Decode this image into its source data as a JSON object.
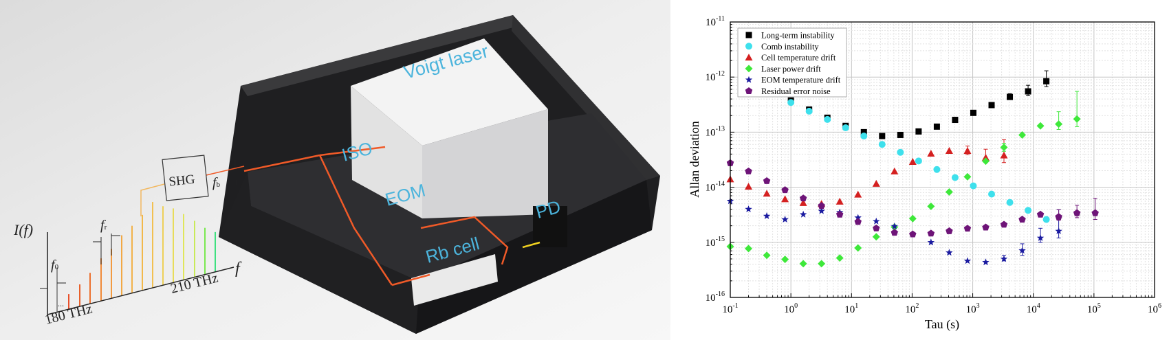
{
  "illustration": {
    "labels": {
      "laser": "Voigt laser",
      "iso": "ISO",
      "eom": "EOM",
      "pd": "PD",
      "rb_cell": "Rb cell",
      "shg": "SHG",
      "fb": "f",
      "fb_sub": "b",
      "fr": "f",
      "fr_sub": "r",
      "f0": "f",
      "f0_sub": "0",
      "intensity": "I(f)",
      "freq_axis": "f",
      "start_freq": "180 THz",
      "end_freq": "210 THz",
      "ellipsis": "..."
    },
    "colors": {
      "beam": "#f05a28",
      "label": "#4cb4dc",
      "enclosure": "#2a2a2c"
    }
  },
  "chart_data": {
    "type": "scatter",
    "xscale": "log",
    "yscale": "log",
    "xlim": [
      0.1,
      1000000
    ],
    "ylim": [
      1e-16,
      1e-11
    ],
    "xlabel": "Tau (s)",
    "ylabel": "Allan deviation",
    "tick_base": "10",
    "x_tick_exponents": [
      "-1",
      "0",
      "1",
      "2",
      "3",
      "4",
      "5",
      "6"
    ],
    "y_tick_exponents": [
      "-11",
      "-12",
      "-13",
      "-14",
      "-15",
      "-16"
    ],
    "grid": true,
    "legend_position": "top-left",
    "series": [
      {
        "name": "Long-term instability",
        "color": "#000000",
        "marker": "square",
        "points": [
          [
            1,
            3.76e-13
          ],
          [
            2,
            2.57e-13
          ],
          [
            4,
            1.83e-13
          ],
          [
            8,
            1.3e-13
          ],
          [
            16,
            1e-13
          ],
          [
            32,
            8.5e-14
          ],
          [
            64,
            8.9e-14
          ],
          [
            128,
            1.03e-13
          ],
          [
            256,
            1.26e-13
          ],
          [
            512,
            1.67e-13
          ],
          [
            1024,
            2.24e-13
          ],
          [
            2048,
            3.1e-13
          ],
          [
            4096,
            4.35e-13
          ],
          [
            8192,
            5.5e-13
          ],
          [
            16384,
            8.4e-13
          ]
        ],
        "errors": {
          "4096": [
            3.9e-13,
            5e-13
          ],
          "8192": [
            4.6e-13,
            7.1e-13
          ],
          "16384": [
            6.7e-13,
            1.3e-12
          ]
        }
      },
      {
        "name": "Comb instability",
        "color": "#3ee0ec",
        "marker": "circle",
        "points": [
          [
            1,
            3.45e-13
          ],
          [
            2,
            2.4e-13
          ],
          [
            4,
            1.7e-13
          ],
          [
            8,
            1.2e-13
          ],
          [
            16,
            8.5e-14
          ],
          [
            32,
            6e-14
          ],
          [
            64,
            4.3e-14
          ],
          [
            128,
            3e-14
          ],
          [
            256,
            2.1e-14
          ],
          [
            512,
            1.5e-14
          ],
          [
            1024,
            1.06e-14
          ],
          [
            2048,
            7.5e-15
          ],
          [
            4096,
            5.3e-15
          ],
          [
            8192,
            3.8e-15
          ],
          [
            16384,
            2.6e-15
          ]
        ]
      },
      {
        "name": "Cell temperature drift",
        "color": "#d42020",
        "marker": "triangle",
        "points": [
          [
            0.1,
            1.4e-14
          ],
          [
            0.2,
            1.03e-14
          ],
          [
            0.4,
            7.7e-15
          ],
          [
            0.8,
            6.1e-15
          ],
          [
            1.6,
            5.2e-15
          ],
          [
            3.2,
            5e-15
          ],
          [
            6.4,
            5.5e-15
          ],
          [
            12.8,
            7.4e-15
          ],
          [
            25.6,
            1.16e-14
          ],
          [
            51.2,
            1.95e-14
          ],
          [
            102.4,
            2.9e-14
          ],
          [
            204.8,
            4.1e-14
          ],
          [
            409.6,
            4.6e-14
          ],
          [
            819.2,
            4.6e-14
          ],
          [
            1638.4,
            3.45e-14
          ],
          [
            3276.8,
            3.8e-14
          ]
        ],
        "errors": {
          "819.2": [
            3.9e-14,
            5.6e-14
          ],
          "1638.4": [
            2.9e-14,
            4.9e-14
          ],
          "3276.8": [
            2.8e-14,
            7.3e-14
          ]
        }
      },
      {
        "name": "Laser power drift",
        "color": "#3ee83a",
        "marker": "diamond",
        "points": [
          [
            0.1,
            8.4e-16
          ],
          [
            0.2,
            7.7e-16
          ],
          [
            0.4,
            5.8e-16
          ],
          [
            0.8,
            4.9e-16
          ],
          [
            1.6,
            4.1e-16
          ],
          [
            3.2,
            4.1e-16
          ],
          [
            6.4,
            5.2e-16
          ],
          [
            12.8,
            7.9e-16
          ],
          [
            25.6,
            1.26e-15
          ],
          [
            51.2,
            1.9e-15
          ],
          [
            102.4,
            2.7e-15
          ],
          [
            204.8,
            4.5e-15
          ],
          [
            409.6,
            8.2e-15
          ],
          [
            819.2,
            1.55e-14
          ],
          [
            1638.4,
            2.97e-14
          ],
          [
            3276.8,
            5.3e-14
          ],
          [
            6553.6,
            8.9e-14
          ],
          [
            13107.2,
            1.3e-13
          ],
          [
            26214.4,
            1.4e-13
          ],
          [
            52428.8,
            1.73e-13
          ]
        ],
        "errors": {
          "3276.8": [
            4.5e-14,
            6.3e-14
          ],
          "26214.4": [
            1.12e-13,
            2.35e-13
          ],
          "52428.8": [
            1.26e-13,
            5.5e-13
          ]
        }
      },
      {
        "name": "EOM temperature drift",
        "color": "#1a1aa0",
        "marker": "star",
        "points": [
          [
            0.1,
            5.6e-15
          ],
          [
            0.2,
            4e-15
          ],
          [
            0.4,
            3e-15
          ],
          [
            0.8,
            2.6e-15
          ],
          [
            1.6,
            3.2e-15
          ],
          [
            3.2,
            3.7e-15
          ],
          [
            6.4,
            3.5e-15
          ],
          [
            12.8,
            2.8e-15
          ],
          [
            25.6,
            2.4e-15
          ],
          [
            51.2,
            1.95e-15
          ],
          [
            204.8,
            1e-15
          ],
          [
            409.6,
            6.5e-16
          ],
          [
            819.2,
            4.6e-16
          ],
          [
            1638.4,
            4.35e-16
          ],
          [
            3276.8,
            5e-16
          ],
          [
            6553.6,
            7.1e-16
          ],
          [
            13107.2,
            1.2e-15
          ],
          [
            26214.4,
            1.6e-15
          ]
        ],
        "errors": {
          "3276.8": [
            4.6e-16,
            5.8e-16
          ],
          "6553.6": [
            5.8e-16,
            9.4e-16
          ],
          "13107.2": [
            1e-15,
            1.8e-15
          ],
          "26214.4": [
            1.2e-15,
            3.9e-15
          ]
        }
      },
      {
        "name": "Residual error noise",
        "color": "#6e1478",
        "marker": "pentagon",
        "points": [
          [
            0.1,
            2.75e-14
          ],
          [
            0.2,
            1.95e-14
          ],
          [
            0.4,
            1.3e-14
          ],
          [
            0.8,
            8.9e-15
          ],
          [
            1.6,
            6.3e-15
          ],
          [
            3.2,
            4.6e-15
          ],
          [
            6.4,
            3.2e-15
          ],
          [
            12.8,
            2.36e-15
          ],
          [
            25.6,
            1.8e-15
          ],
          [
            51.2,
            1.5e-15
          ],
          [
            102.4,
            1.4e-15
          ],
          [
            204.8,
            1.45e-15
          ],
          [
            409.6,
            1.6e-15
          ],
          [
            819.2,
            1.78e-15
          ],
          [
            1638.4,
            1.87e-15
          ],
          [
            3276.8,
            2.1e-15
          ],
          [
            6553.6,
            2.6e-15
          ],
          [
            13107.2,
            3.2e-15
          ],
          [
            26214.4,
            2.9e-15
          ],
          [
            52428.8,
            3.4e-15
          ],
          [
            104857.6,
            3.4e-15
          ]
        ],
        "errors": {
          "26214.4": [
            2.5e-15,
            3.9e-15
          ],
          "52428.8": [
            2.8e-15,
            4.7e-15
          ],
          "104857.6": [
            2.6e-15,
            6.3e-15
          ]
        }
      }
    ]
  }
}
